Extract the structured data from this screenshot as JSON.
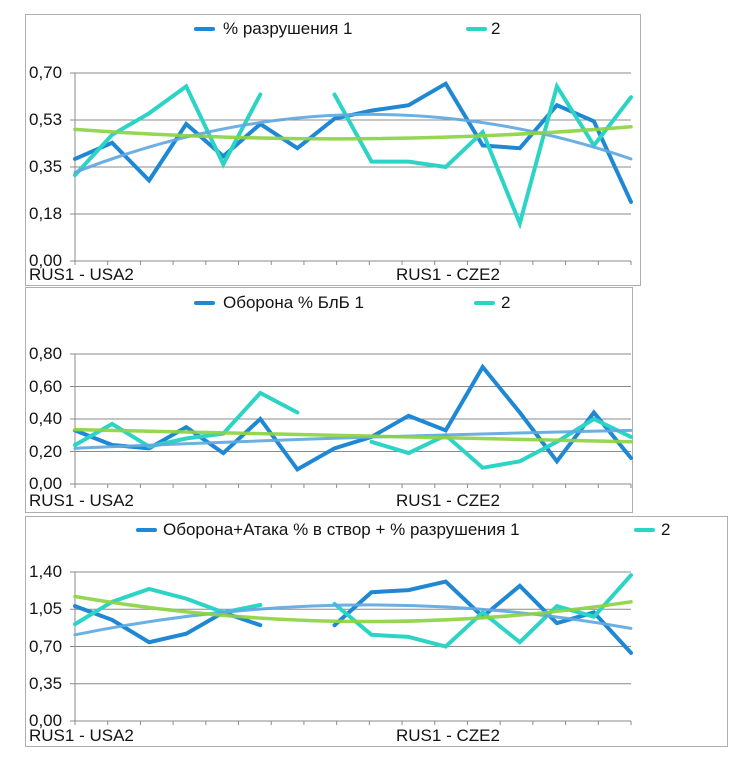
{
  "colors": {
    "series1": "#1F88D4",
    "series2": "#2BD4C4",
    "trend1": "#5FA8DF",
    "trend2": "#8CD243",
    "grid": "#8B8B8B",
    "border": "#AEAEAE",
    "text": "#141414"
  },
  "chart_data": [
    {
      "type": "line",
      "legend": {
        "series1": "% разрушения 1",
        "series2": "2"
      },
      "x_axis": {
        "left_label": "RUS1 - USA2",
        "right_label": "RUS1 - CZE2"
      },
      "y_tick_labels": [
        "0,70",
        "0,53",
        "0,35",
        "0,18",
        "0,00"
      ],
      "y_max": 0.7,
      "series1_values": [
        0.38,
        0.44,
        0.3,
        0.51,
        0.39,
        0.51,
        0.42,
        0.53,
        0.56,
        0.58,
        0.66,
        0.43,
        0.42,
        0.58,
        0.52,
        0.22
      ],
      "series2_values": [
        0.32,
        0.47,
        0.55,
        0.65,
        0.36,
        0.62,
        null,
        0.62,
        0.37,
        0.37,
        0.35,
        0.48,
        0.14,
        0.65,
        0.43,
        0.61
      ],
      "trend1_sme": [
        0.33,
        0.545,
        0.38
      ],
      "trend2_sme": [
        0.49,
        0.455,
        0.5
      ]
    },
    {
      "type": "line",
      "legend": {
        "series1": "Оборона % БлБ 1",
        "series2": "2"
      },
      "x_axis": {
        "left_label": "RUS1 - USA2",
        "right_label": "RUS1 - CZE2"
      },
      "y_tick_labels": [
        "0,80",
        "0,60",
        "0,40",
        "0,20",
        "0,00"
      ],
      "y_max": 0.8,
      "series1_values": [
        0.33,
        0.24,
        0.22,
        0.35,
        0.19,
        0.4,
        0.09,
        0.22,
        0.29,
        0.42,
        0.33,
        0.72,
        0.44,
        0.14,
        0.44,
        0.16
      ],
      "series2_values": [
        0.24,
        0.37,
        0.23,
        0.28,
        0.31,
        0.56,
        0.44,
        null,
        0.26,
        0.19,
        0.3,
        0.1,
        0.14,
        0.26,
        0.4,
        0.29
      ],
      "trend1_sme": [
        0.22,
        0.285,
        0.33
      ],
      "trend2_sme": [
        0.335,
        0.3,
        0.26
      ]
    },
    {
      "type": "line",
      "legend": {
        "series1": "Оборона+Атака % в створ + % разрушения 1",
        "series2": "2"
      },
      "x_axis": {
        "left_label": "RUS1 - USA2",
        "right_label": "RUS1 - CZE2"
      },
      "y_tick_labels": [
        "1,40",
        "1,05",
        "0,70",
        "0,35",
        "0,00"
      ],
      "y_max": 1.4,
      "series1_values": [
        1.08,
        0.95,
        0.74,
        0.82,
        1.02,
        0.9,
        null,
        0.9,
        1.21,
        1.23,
        1.31,
        0.98,
        1.27,
        0.92,
        1.02,
        0.64
      ],
      "series2_values": [
        0.91,
        1.12,
        1.24,
        1.15,
        1.02,
        1.09,
        null,
        1.1,
        0.81,
        0.79,
        0.7,
        1.02,
        0.74,
        1.08,
        0.98,
        1.37
      ],
      "trend1_sme": [
        0.81,
        1.09,
        0.87
      ],
      "trend2_sme": [
        1.17,
        0.935,
        1.12
      ]
    }
  ]
}
